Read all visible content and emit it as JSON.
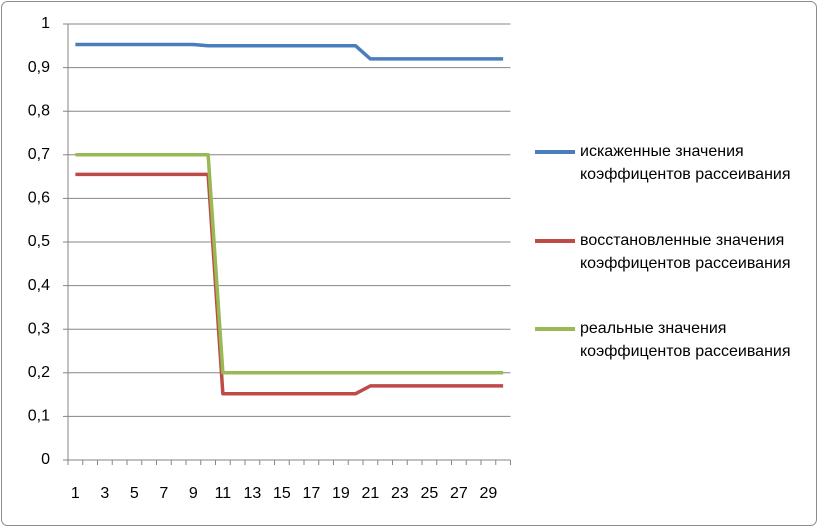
{
  "chart_data": {
    "type": "line",
    "categories": [
      1,
      null,
      3,
      null,
      5,
      null,
      7,
      null,
      9,
      null,
      11,
      null,
      13,
      null,
      15,
      null,
      17,
      null,
      19,
      null,
      21,
      null,
      23,
      null,
      25,
      null,
      27,
      null,
      29,
      null
    ],
    "series": [
      {
        "name": "искаженные значения коэффицентов рассеивания",
        "color": "#4a7ebb",
        "values": [
          0.953,
          0.953,
          0.953,
          0.953,
          0.953,
          0.953,
          0.953,
          0.953,
          0.953,
          0.95,
          0.95,
          0.95,
          0.95,
          0.95,
          0.95,
          0.95,
          0.95,
          0.95,
          0.95,
          0.95,
          0.92,
          0.92,
          0.92,
          0.92,
          0.92,
          0.92,
          0.92,
          0.92,
          0.92,
          0.92
        ]
      },
      {
        "name": "восстановленные значения коэффицентов рассеивания",
        "color": "#be4b48",
        "values": [
          0.655,
          0.655,
          0.655,
          0.655,
          0.655,
          0.655,
          0.655,
          0.655,
          0.655,
          0.655,
          0.152,
          0.152,
          0.152,
          0.152,
          0.152,
          0.152,
          0.152,
          0.152,
          0.152,
          0.152,
          0.17,
          0.17,
          0.17,
          0.17,
          0.17,
          0.17,
          0.17,
          0.17,
          0.17,
          0.17
        ]
      },
      {
        "name": "реальные значения коэффицентов рассеивания",
        "color": "#98b954",
        "values": [
          0.7,
          0.7,
          0.7,
          0.7,
          0.7,
          0.7,
          0.7,
          0.7,
          0.7,
          0.7,
          0.2,
          0.2,
          0.2,
          0.2,
          0.2,
          0.2,
          0.2,
          0.2,
          0.2,
          0.2,
          0.2,
          0.2,
          0.2,
          0.2,
          0.2,
          0.2,
          0.2,
          0.2,
          0.2,
          0.2
        ]
      }
    ],
    "ylim": [
      0,
      1
    ],
    "yticks": [
      0,
      {
        "value": 0.1,
        "label": "0,1"
      },
      {
        "value": 0.2,
        "label": "0,2"
      },
      {
        "value": 0.3,
        "label": "0,3"
      },
      {
        "value": 0.4,
        "label": "0,4"
      },
      {
        "value": 0.5,
        "label": "0,5"
      },
      {
        "value": 0.6,
        "label": "0,6"
      },
      {
        "value": 0.7,
        "label": "0,7"
      },
      {
        "value": 0.8,
        "label": "0,8"
      },
      {
        "value": 0.9,
        "label": "0,9"
      },
      1
    ],
    "grid": true,
    "legend": "right"
  }
}
